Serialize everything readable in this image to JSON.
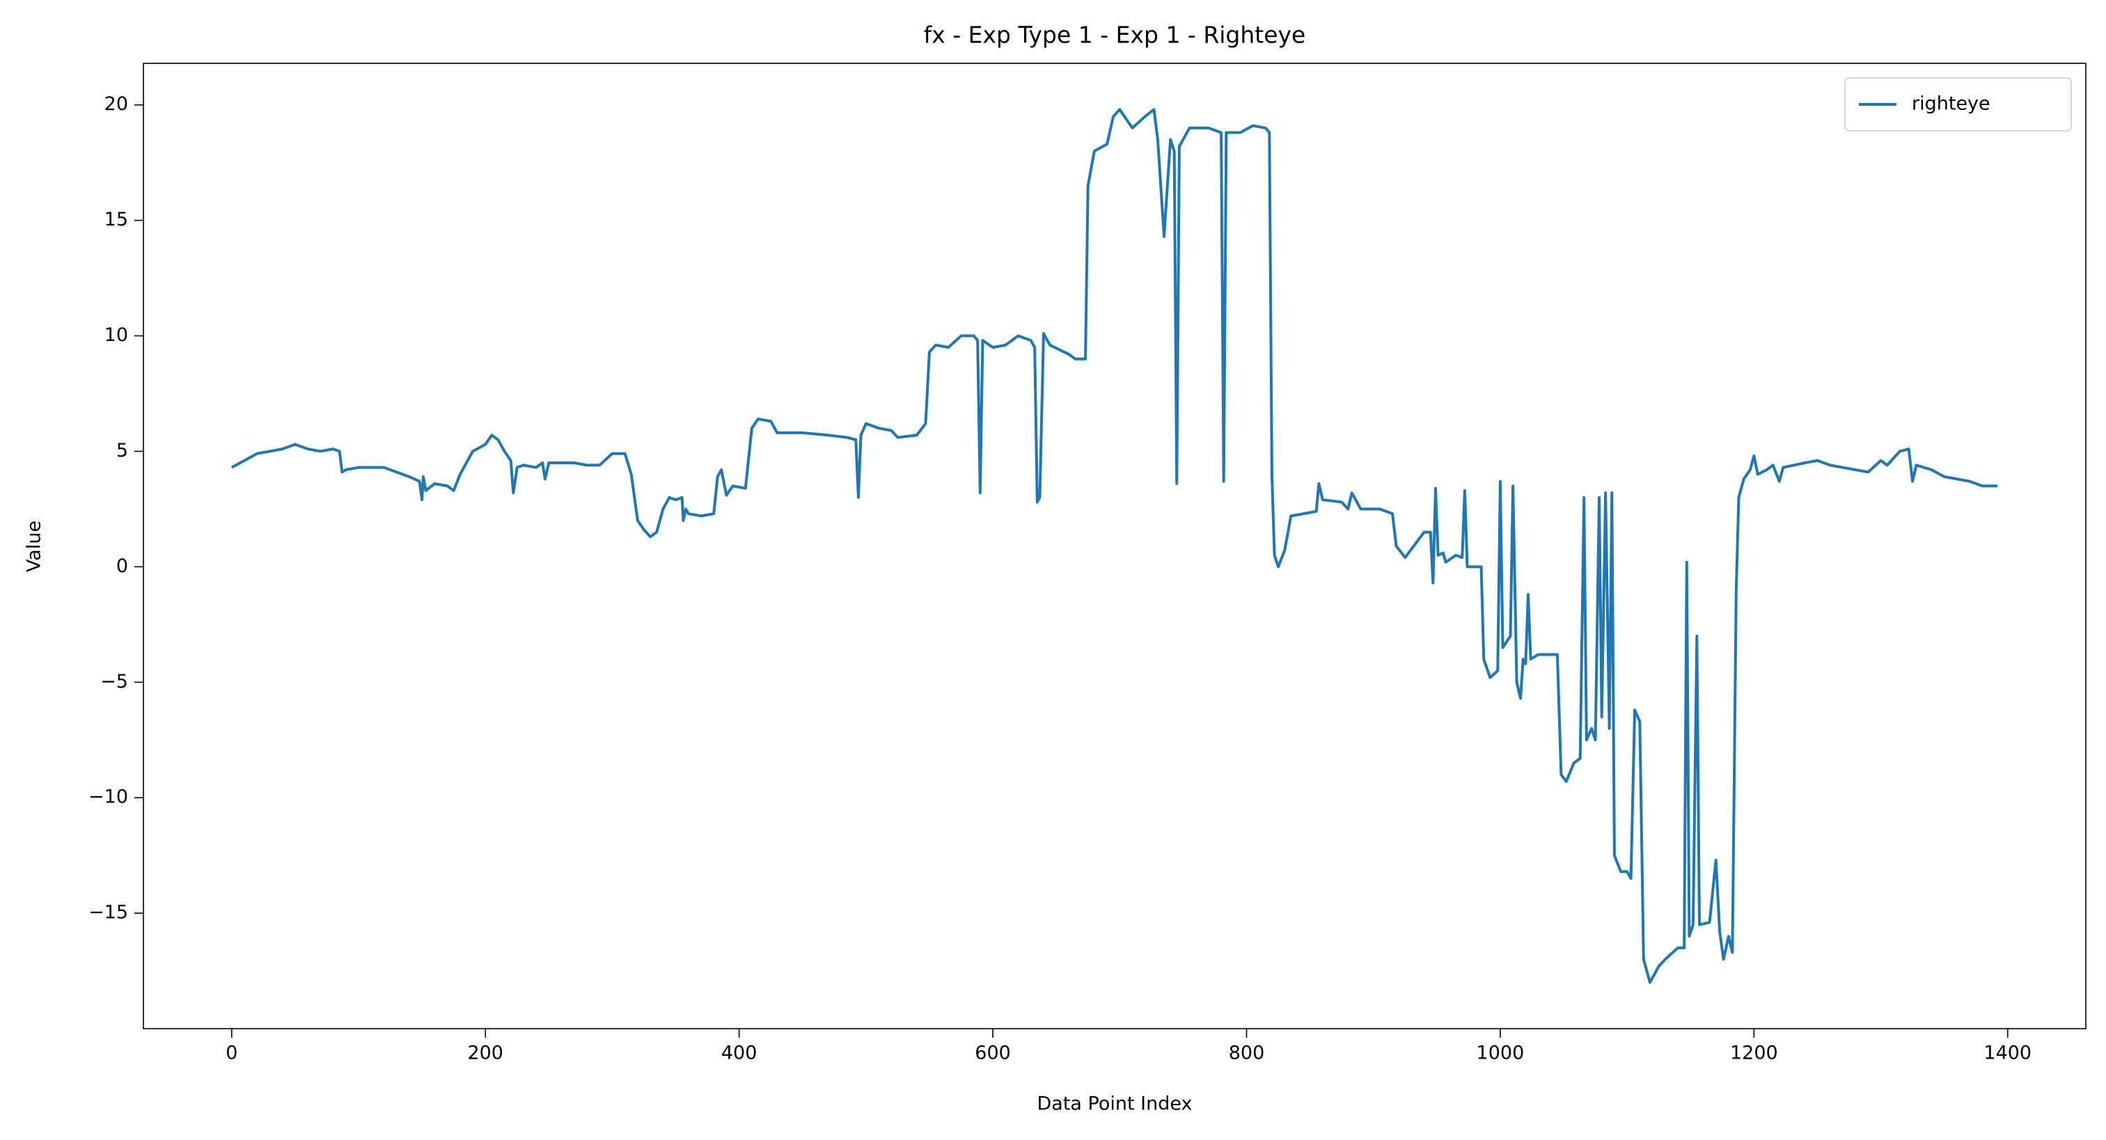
{
  "chart_data": {
    "type": "line",
    "title": "fx - Exp Type 1 - Exp 1 - Righteye",
    "xlabel": "Data Point Index",
    "ylabel": "Value",
    "x": [
      0,
      10,
      20,
      30,
      40,
      50,
      60,
      70,
      80,
      85,
      87,
      90,
      100,
      120,
      130,
      140,
      148,
      150,
      151,
      153,
      160,
      170,
      175,
      180,
      190,
      200,
      205,
      210,
      215,
      220,
      222,
      225,
      230,
      240,
      245,
      247,
      250,
      270,
      280,
      290,
      300,
      310,
      315,
      320,
      325,
      330,
      335,
      340,
      345,
      350,
      355,
      356,
      358,
      360,
      370,
      380,
      383,
      386,
      390,
      395,
      405,
      410,
      415,
      425,
      430,
      450,
      470,
      485,
      492,
      494,
      496,
      500,
      510,
      520,
      525,
      540,
      547,
      550,
      555,
      565,
      575,
      585,
      588,
      590,
      592,
      600,
      610,
      620,
      630,
      633,
      635,
      637,
      640,
      645,
      660,
      665,
      673,
      675,
      680,
      690,
      695,
      700,
      710,
      720,
      727,
      730,
      735,
      740,
      743,
      745,
      747,
      755,
      770,
      780,
      782,
      784,
      795,
      805,
      815,
      818,
      820,
      822,
      825,
      830,
      835,
      845,
      855,
      857,
      860,
      875,
      880,
      883,
      890,
      905,
      915,
      918,
      925,
      940,
      945,
      947,
      949,
      951,
      955,
      957,
      965,
      970,
      972,
      974,
      985,
      987,
      992,
      998,
      1000,
      1002,
      1008,
      1010,
      1013,
      1016,
      1018,
      1020,
      1022,
      1024,
      1030,
      1045,
      1048,
      1052,
      1058,
      1063,
      1066,
      1068,
      1072,
      1075,
      1078,
      1080,
      1083,
      1086,
      1088,
      1090,
      1095,
      1100,
      1103,
      1106,
      1110,
      1113,
      1118,
      1125,
      1130,
      1140,
      1145,
      1147,
      1149,
      1152,
      1155,
      1157,
      1165,
      1170,
      1173,
      1176,
      1180,
      1183,
      1186,
      1188,
      1192,
      1197,
      1200,
      1203,
      1210,
      1215,
      1220,
      1223,
      1240,
      1250,
      1260,
      1270,
      1280,
      1290,
      1300,
      1305,
      1310,
      1315,
      1322,
      1325,
      1328,
      1340,
      1350,
      1360,
      1370,
      1380,
      1392
    ],
    "series": [
      {
        "name": "righteye",
        "color": "#1f77b4",
        "values": [
          4.3,
          4.6,
          4.9,
          5.0,
          5.1,
          5.3,
          5.1,
          5.0,
          5.1,
          5.0,
          4.1,
          4.2,
          4.3,
          4.3,
          4.1,
          3.9,
          3.7,
          2.9,
          3.9,
          3.3,
          3.6,
          3.5,
          3.3,
          4.0,
          5.0,
          5.3,
          5.7,
          5.5,
          5.0,
          4.6,
          3.2,
          4.3,
          4.4,
          4.3,
          4.5,
          3.8,
          4.5,
          4.5,
          4.4,
          4.4,
          4.9,
          4.9,
          4.0,
          2.0,
          1.6,
          1.3,
          1.5,
          2.5,
          3.0,
          2.9,
          3.0,
          2.0,
          2.5,
          2.3,
          2.2,
          2.3,
          3.9,
          4.2,
          3.1,
          3.5,
          3.4,
          6.0,
          6.4,
          6.3,
          5.8,
          5.8,
          5.7,
          5.6,
          5.5,
          3.0,
          5.7,
          6.2,
          6.0,
          5.9,
          5.6,
          5.7,
          6.2,
          9.3,
          9.6,
          9.5,
          10.0,
          10.0,
          9.8,
          3.2,
          9.8,
          9.5,
          9.6,
          10.0,
          9.8,
          9.5,
          2.8,
          3.0,
          10.1,
          9.6,
          9.2,
          9.0,
          9.0,
          16.5,
          18.0,
          18.3,
          19.5,
          19.8,
          19.0,
          19.5,
          19.8,
          18.5,
          14.3,
          18.5,
          18.0,
          3.6,
          18.2,
          19.0,
          19.0,
          18.8,
          3.7,
          18.8,
          18.8,
          19.1,
          19.0,
          18.8,
          4.0,
          0.5,
          0.0,
          0.7,
          2.2,
          2.3,
          2.4,
          3.6,
          2.9,
          2.8,
          2.5,
          3.2,
          2.5,
          2.5,
          2.3,
          0.9,
          0.4,
          1.5,
          1.5,
          -0.7,
          3.4,
          0.5,
          0.6,
          0.2,
          0.5,
          0.4,
          3.3,
          0.0,
          0.0,
          -4.0,
          -4.8,
          -4.5,
          3.7,
          -3.5,
          -3.0,
          3.5,
          -5.0,
          -5.7,
          -4.0,
          -4.2,
          -1.2,
          -4.0,
          -3.8,
          -3.8,
          -9.0,
          -9.3,
          -8.5,
          -8.3,
          3.0,
          -7.5,
          -7.0,
          -7.5,
          3.0,
          -6.5,
          3.2,
          -7.0,
          3.2,
          -12.5,
          -13.2,
          -13.2,
          -13.5,
          -6.2,
          -6.7,
          -17.0,
          -18.0,
          -17.3,
          -17.0,
          -16.5,
          -16.5,
          0.2,
          -16.0,
          -15.5,
          -3.0,
          -15.5,
          -15.4,
          -12.7,
          -15.8,
          -17.0,
          -16.0,
          -16.7,
          -1.0,
          3.0,
          3.8,
          4.2,
          4.8,
          4.0,
          4.2,
          4.4,
          3.7,
          4.3,
          4.5,
          4.6,
          4.4,
          4.3,
          4.2,
          4.1,
          4.6,
          4.4,
          4.7,
          5.0,
          5.1,
          3.7,
          4.4,
          4.2,
          3.9,
          3.8,
          3.7,
          3.5,
          3.5
        ]
      }
    ],
    "xlim": [
      -69.6,
      1461.6
    ],
    "xticks": [
      0,
      200,
      400,
      600,
      800,
      1000,
      1200,
      1400
    ],
    "ylim": [
      -20.0,
      21.8
    ],
    "yticks": [
      {
        "value": -15,
        "label": "−15"
      },
      {
        "value": -10,
        "label": "−10"
      },
      {
        "value": -5,
        "label": "−5"
      },
      0,
      5,
      10,
      15,
      20
    ],
    "legend": "upper right"
  }
}
